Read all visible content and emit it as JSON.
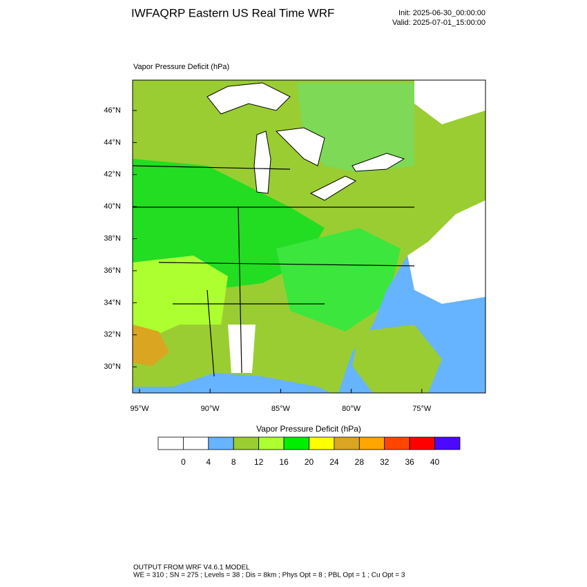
{
  "header": {
    "title": "IWFAQRP Eastern US Real Time WRF",
    "init": "Init: 2025-06-30_00:00:00",
    "valid": "Valid: 2025-07-01_15:00:00"
  },
  "map": {
    "field_label": "Vapor Pressure Deficit   (hPa)",
    "lat_ticks": [
      "46°N",
      "44°N",
      "42°N",
      "40°N",
      "38°N",
      "36°N",
      "34°N",
      "32°N",
      "30°N"
    ],
    "lon_ticks": [
      "95°W",
      "90°W",
      "85°W",
      "80°W",
      "75°W"
    ]
  },
  "colorbar": {
    "title": "Vapor Pressure Deficit  (hPa)",
    "colors": [
      "#ffffff",
      "#ffffff",
      "#66b3ff",
      "#9acd32",
      "#adff2f",
      "#00ee00",
      "#ffff00",
      "#daa520",
      "#ffa500",
      "#ff4500",
      "#ff0000",
      "#4b0aff"
    ],
    "ticks": [
      0,
      4,
      8,
      12,
      16,
      20,
      24,
      28,
      32,
      36,
      40
    ]
  },
  "footer": {
    "line1": "OUTPUT FROM WRF V4.6.1 MODEL",
    "line2": "WE = 310 ; SN = 275 ; Levels = 38 ; Dis = 8km ; Phys Opt = 8 ; PBL Opt = 1 ; Cu Opt = 3"
  }
}
